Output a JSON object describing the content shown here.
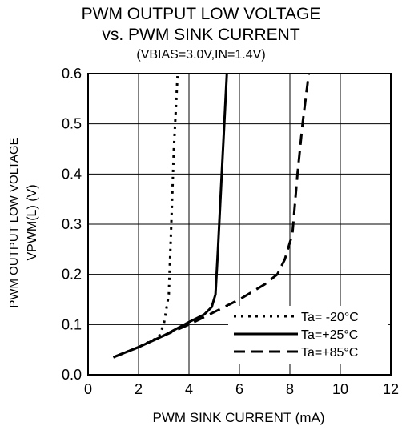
{
  "chart_data": {
    "type": "line",
    "title": "PWM OUTPUT LOW VOLTAGE",
    "subtitle": "vs. PWM SINK CURRENT",
    "subtitle2": "(VBIAS=3.0V,IN=1.4V)",
    "xlabel": "PWM SINK CURRENT  (mA)",
    "ylabel_line1": "PWM OUTPUT LOW VOLTAGE",
    "ylabel_line2": "VPWM(L) (V)",
    "xlim": [
      0,
      12
    ],
    "ylim": [
      0,
      0.6
    ],
    "x_ticks": [
      "0",
      "2",
      "4",
      "6",
      "8",
      "10",
      "12"
    ],
    "y_ticks": [
      "0.0",
      "0.1",
      "0.2",
      "0.3",
      "0.4",
      "0.5",
      "0.6"
    ],
    "grid": true,
    "legend_position": "bottom-right",
    "series": [
      {
        "name": "Ta= -20°C",
        "dash": "dotted",
        "points": [
          [
            1.0,
            0.035
          ],
          [
            2.0,
            0.055
          ],
          [
            2.8,
            0.075
          ],
          [
            3.0,
            0.1
          ],
          [
            3.2,
            0.16
          ],
          [
            3.3,
            0.3
          ],
          [
            3.4,
            0.45
          ],
          [
            3.55,
            0.6
          ]
        ]
      },
      {
        "name": "Ta=+25°C",
        "dash": "solid",
        "points": [
          [
            1.0,
            0.035
          ],
          [
            2.0,
            0.055
          ],
          [
            3.0,
            0.078
          ],
          [
            4.0,
            0.105
          ],
          [
            4.6,
            0.12
          ],
          [
            4.9,
            0.135
          ],
          [
            5.05,
            0.16
          ],
          [
            5.15,
            0.25
          ],
          [
            5.3,
            0.4
          ],
          [
            5.5,
            0.6
          ]
        ]
      },
      {
        "name": "Ta=+85°C",
        "dash": "dashed",
        "points": [
          [
            1.0,
            0.035
          ],
          [
            2.0,
            0.055
          ],
          [
            3.0,
            0.078
          ],
          [
            4.0,
            0.1
          ],
          [
            5.0,
            0.125
          ],
          [
            6.0,
            0.15
          ],
          [
            7.0,
            0.18
          ],
          [
            7.5,
            0.2
          ],
          [
            7.8,
            0.23
          ],
          [
            8.1,
            0.28
          ],
          [
            8.3,
            0.4
          ],
          [
            8.5,
            0.5
          ],
          [
            8.75,
            0.6
          ]
        ]
      }
    ]
  }
}
